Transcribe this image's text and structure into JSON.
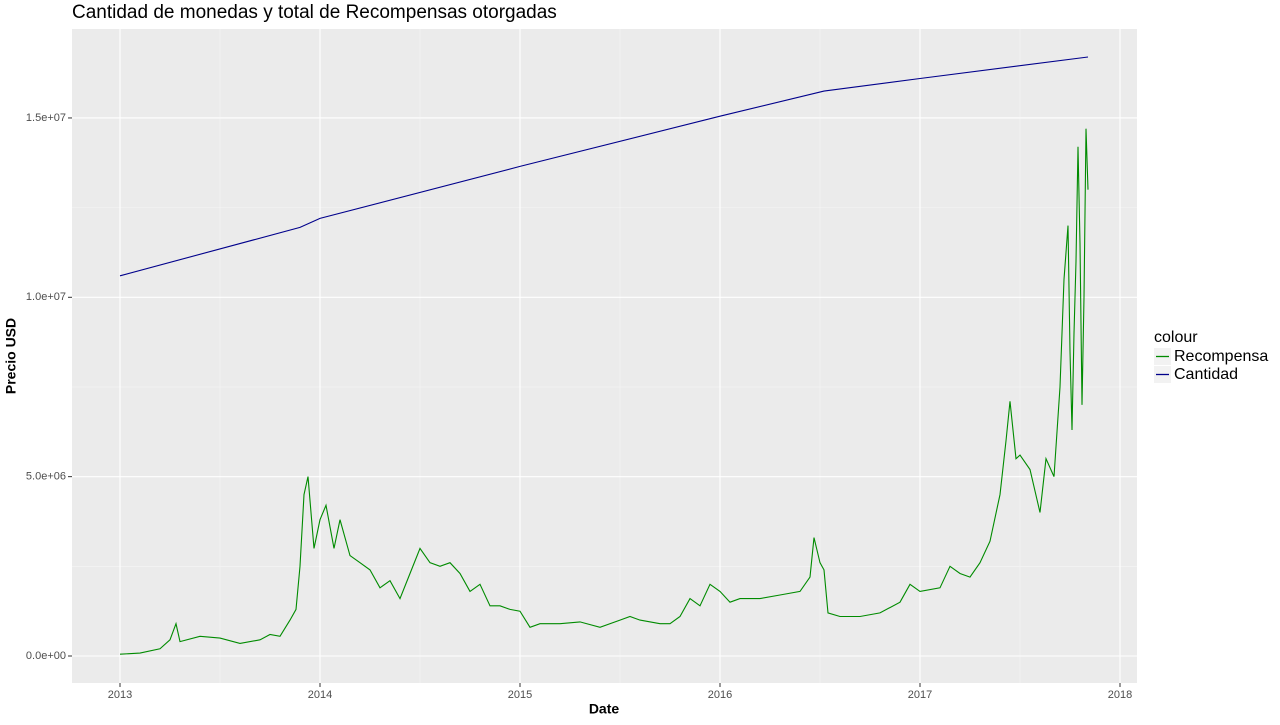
{
  "chart_data": {
    "type": "line",
    "title": "Cantidad de monedas y total de Recompensas otorgadas",
    "x_label": "Date",
    "y_label": "Precio USD",
    "legend_title": "colour",
    "legend_position": "right",
    "xlim": [
      2012.76,
      2018.085
    ],
    "xticks": [
      2013,
      2014,
      2015,
      2016,
      2017,
      2018
    ],
    "ylim": [
      -753000,
      17480000
    ],
    "yticks": [
      {
        "value": 0,
        "label": "0.0e+00"
      },
      {
        "value": 5000000,
        "label": "5.0e+06"
      },
      {
        "value": 10000000,
        "label": "1.0e+07"
      },
      {
        "value": 15000000,
        "label": "1.5e+07"
      }
    ],
    "grid": true,
    "series": [
      {
        "name": "Recompensa",
        "color": "#008b00",
        "x": [
          2013.0,
          2013.1,
          2013.2,
          2013.25,
          2013.28,
          2013.3,
          2013.4,
          2013.5,
          2013.6,
          2013.7,
          2013.75,
          2013.8,
          2013.85,
          2013.88,
          2013.9,
          2013.92,
          2013.94,
          2013.97,
          2014.0,
          2014.03,
          2014.07,
          2014.1,
          2014.15,
          2014.2,
          2014.25,
          2014.3,
          2014.35,
          2014.4,
          2014.45,
          2014.5,
          2014.55,
          2014.6,
          2014.65,
          2014.7,
          2014.75,
          2014.8,
          2014.85,
          2014.9,
          2014.95,
          2015.0,
          2015.05,
          2015.1,
          2015.2,
          2015.3,
          2015.4,
          2015.5,
          2015.55,
          2015.6,
          2015.7,
          2015.75,
          2015.8,
          2015.85,
          2015.9,
          2015.95,
          2016.0,
          2016.05,
          2016.1,
          2016.2,
          2016.3,
          2016.4,
          2016.45,
          2016.47,
          2016.5,
          2016.52,
          2016.54,
          2016.6,
          2016.7,
          2016.8,
          2016.9,
          2016.95,
          2017.0,
          2017.1,
          2017.15,
          2017.2,
          2017.25,
          2017.3,
          2017.35,
          2017.4,
          2017.43,
          2017.45,
          2017.48,
          2017.5,
          2017.55,
          2017.6,
          2017.63,
          2017.67,
          2017.7,
          2017.71,
          2017.72,
          2017.74,
          2017.75,
          2017.76,
          2017.77,
          2017.78,
          2017.79,
          2017.8,
          2017.81,
          2017.82,
          2017.83,
          2017.84
        ],
        "values": [
          50000,
          80000,
          200000,
          450000,
          900000,
          400000,
          550000,
          500000,
          350000,
          450000,
          600000,
          550000,
          1000000,
          1300000,
          2500000,
          4500000,
          5000000,
          3000000,
          3800000,
          4200000,
          3000000,
          3800000,
          2800000,
          2600000,
          2400000,
          1900000,
          2100000,
          1600000,
          2300000,
          3000000,
          2600000,
          2500000,
          2600000,
          2300000,
          1800000,
          2000000,
          1400000,
          1400000,
          1300000,
          1250000,
          800000,
          900000,
          900000,
          950000,
          800000,
          1000000,
          1100000,
          1000000,
          900000,
          900000,
          1100000,
          1600000,
          1400000,
          2000000,
          1800000,
          1500000,
          1600000,
          1600000,
          1700000,
          1800000,
          2200000,
          3300000,
          2600000,
          2400000,
          1200000,
          1100000,
          1100000,
          1200000,
          1500000,
          2000000,
          1800000,
          1900000,
          2500000,
          2300000,
          2200000,
          2600000,
          3200000,
          4500000,
          6000000,
          7100000,
          5500000,
          5600000,
          5200000,
          4000000,
          5500000,
          5000000,
          7500000,
          9000000,
          10500000,
          12000000,
          8500000,
          6300000,
          9000000,
          11000000,
          14200000,
          11500000,
          7000000,
          10000000,
          14700000,
          13000000
        ]
      },
      {
        "name": "Cantidad",
        "color": "#00008b",
        "x": [
          2013.0,
          2013.9,
          2014.0,
          2015.0,
          2016.0,
          2016.52,
          2017.0,
          2017.84
        ],
        "values": [
          10600000,
          11950000,
          12200000,
          13650000,
          15050000,
          15750000,
          16100000,
          16700000
        ]
      }
    ]
  }
}
